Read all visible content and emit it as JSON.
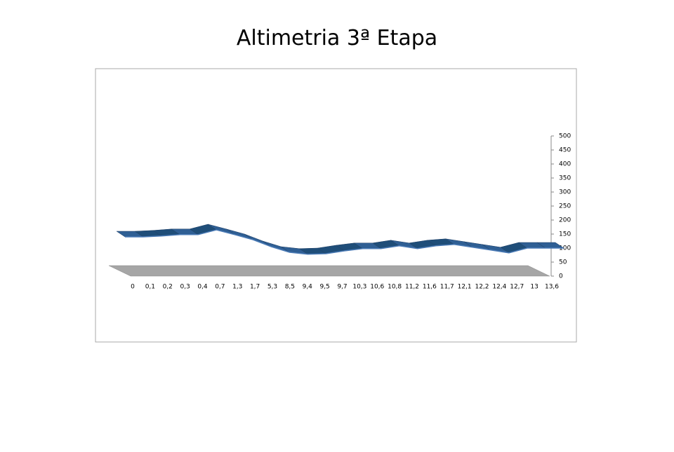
{
  "chart_data": {
    "type": "line3d",
    "title": "Altimetria 3ª Etapa",
    "categories": [
      "0",
      "0,1",
      "0,2",
      "0,3",
      "0,4",
      "0,7",
      "1,3",
      "1,7",
      "5,3",
      "8,5",
      "9,4",
      "9,5",
      "9,7",
      "10,3",
      "10,6",
      "10,8",
      "11,2",
      "11,6",
      "11,7",
      "12,1",
      "12,2",
      "12,4",
      "12,7",
      "13",
      "13,6"
    ],
    "values": [
      140,
      140,
      143,
      148,
      148,
      165,
      148,
      130,
      105,
      85,
      78,
      80,
      90,
      98,
      98,
      108,
      98,
      108,
      113,
      103,
      93,
      83,
      100,
      100,
      100
    ],
    "color": "#2f5f94",
    "ylim": [
      0,
      500
    ],
    "yticks": [
      0,
      50,
      100,
      150,
      200,
      250,
      300,
      350,
      400,
      450,
      500
    ]
  }
}
